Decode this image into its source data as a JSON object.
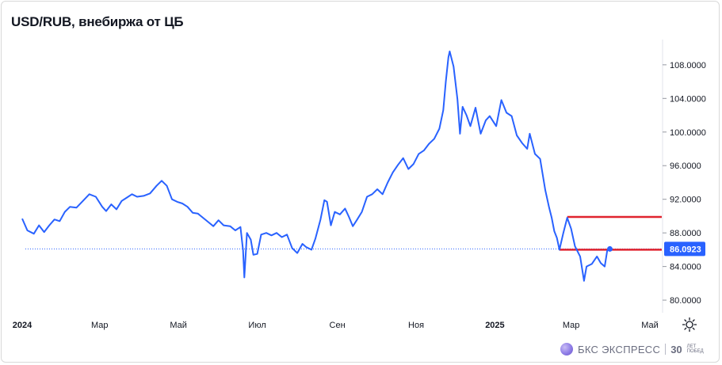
{
  "header": {
    "title": "USD/RUB, внебиржа от ЦБ"
  },
  "chart_data": {
    "type": "line",
    "title": "USD/RUB, внебиржа от ЦБ",
    "xlabel": "",
    "ylabel": "",
    "x_ticks": [
      "2024",
      "Мар",
      "Май",
      "Июл",
      "Сен",
      "Ноя",
      "2025",
      "Мар",
      "Май"
    ],
    "y_ticks": [
      "80.0000",
      "84.0000",
      "88.0000",
      "92.0000",
      "96.0000",
      "100.0000",
      "104.0000",
      "108.0000"
    ],
    "ylim": [
      78.5,
      111
    ],
    "grid": false,
    "series": [
      {
        "color": "#2962ff",
        "points": [
          [
            "2024-01-01",
            89.7
          ],
          [
            "2024-01-05",
            88.3
          ],
          [
            "2024-01-10",
            87.9
          ],
          [
            "2024-01-14",
            88.9
          ],
          [
            "2024-01-18",
            88.1
          ],
          [
            "2024-01-22",
            88.9
          ],
          [
            "2024-01-26",
            89.6
          ],
          [
            "2024-01-30",
            89.4
          ],
          [
            "2024-02-03",
            90.5
          ],
          [
            "2024-02-07",
            91.1
          ],
          [
            "2024-02-12",
            91.0
          ],
          [
            "2024-02-17",
            91.8
          ],
          [
            "2024-02-22",
            92.6
          ],
          [
            "2024-02-27",
            92.3
          ],
          [
            "2024-03-03",
            91.1
          ],
          [
            "2024-03-06",
            90.6
          ],
          [
            "2024-03-10",
            91.4
          ],
          [
            "2024-03-14",
            90.8
          ],
          [
            "2024-03-18",
            91.8
          ],
          [
            "2024-03-22",
            92.2
          ],
          [
            "2024-03-26",
            92.6
          ],
          [
            "2024-03-30",
            92.3
          ],
          [
            "2024-04-04",
            92.4
          ],
          [
            "2024-04-09",
            92.7
          ],
          [
            "2024-04-14",
            93.6
          ],
          [
            "2024-04-18",
            94.2
          ],
          [
            "2024-04-22",
            93.6
          ],
          [
            "2024-04-26",
            92.0
          ],
          [
            "2024-04-30",
            91.7
          ],
          [
            "2024-05-04",
            91.5
          ],
          [
            "2024-05-08",
            91.1
          ],
          [
            "2024-05-12",
            90.4
          ],
          [
            "2024-05-16",
            90.3
          ],
          [
            "2024-05-20",
            89.8
          ],
          [
            "2024-05-24",
            89.3
          ],
          [
            "2024-05-28",
            88.8
          ],
          [
            "2024-06-01",
            89.5
          ],
          [
            "2024-06-05",
            88.9
          ],
          [
            "2024-06-10",
            88.8
          ],
          [
            "2024-06-14",
            88.3
          ],
          [
            "2024-06-18",
            88.7
          ],
          [
            "2024-06-20",
            85.9
          ],
          [
            "2024-06-21",
            82.7
          ],
          [
            "2024-06-23",
            88.0
          ],
          [
            "2024-06-26",
            87.2
          ],
          [
            "2024-06-28",
            85.4
          ],
          [
            "2024-07-01",
            85.5
          ],
          [
            "2024-07-04",
            87.8
          ],
          [
            "2024-07-08",
            88.0
          ],
          [
            "2024-07-12",
            87.7
          ],
          [
            "2024-07-16",
            88.0
          ],
          [
            "2024-07-20",
            87.5
          ],
          [
            "2024-07-24",
            87.8
          ],
          [
            "2024-07-28",
            86.2
          ],
          [
            "2024-08-01",
            85.6
          ],
          [
            "2024-08-05",
            86.7
          ],
          [
            "2024-08-08",
            86.3
          ],
          [
            "2024-08-12",
            86.0
          ],
          [
            "2024-08-15",
            87.3
          ],
          [
            "2024-08-19",
            89.6
          ],
          [
            "2024-08-22",
            91.9
          ],
          [
            "2024-08-24",
            91.7
          ],
          [
            "2024-08-27",
            88.9
          ],
          [
            "2024-08-30",
            90.5
          ],
          [
            "2024-09-03",
            90.2
          ],
          [
            "2024-09-07",
            90.9
          ],
          [
            "2024-09-10",
            89.9
          ],
          [
            "2024-09-13",
            88.8
          ],
          [
            "2024-09-16",
            89.5
          ],
          [
            "2024-09-20",
            90.5
          ],
          [
            "2024-09-24",
            92.3
          ],
          [
            "2024-09-28",
            92.6
          ],
          [
            "2024-10-02",
            93.2
          ],
          [
            "2024-10-06",
            92.6
          ],
          [
            "2024-10-10",
            94.0
          ],
          [
            "2024-10-14",
            95.2
          ],
          [
            "2024-10-18",
            96.1
          ],
          [
            "2024-10-22",
            96.9
          ],
          [
            "2024-10-26",
            95.6
          ],
          [
            "2024-10-30",
            96.2
          ],
          [
            "2024-11-03",
            97.4
          ],
          [
            "2024-11-07",
            97.8
          ],
          [
            "2024-11-11",
            98.6
          ],
          [
            "2024-11-15",
            99.2
          ],
          [
            "2024-11-19",
            100.4
          ],
          [
            "2024-11-22",
            102.6
          ],
          [
            "2024-11-24",
            106.0
          ],
          [
            "2024-11-26",
            108.9
          ],
          [
            "2024-11-27",
            109.6
          ],
          [
            "2024-11-30",
            107.8
          ],
          [
            "2024-12-03",
            103.9
          ],
          [
            "2024-12-05",
            99.8
          ],
          [
            "2024-12-07",
            103.0
          ],
          [
            "2024-12-10",
            102.0
          ],
          [
            "2024-12-13",
            100.7
          ],
          [
            "2024-12-17",
            102.9
          ],
          [
            "2024-12-21",
            99.8
          ],
          [
            "2024-12-25",
            101.4
          ],
          [
            "2024-12-28",
            101.9
          ],
          [
            "2025-01-02",
            100.7
          ],
          [
            "2025-01-06",
            103.8
          ],
          [
            "2025-01-10",
            102.3
          ],
          [
            "2025-01-14",
            101.9
          ],
          [
            "2025-01-18",
            99.6
          ],
          [
            "2025-01-22",
            98.7
          ],
          [
            "2025-01-26",
            98.0
          ],
          [
            "2025-01-28",
            99.8
          ],
          [
            "2025-02-01",
            97.4
          ],
          [
            "2025-02-05",
            96.8
          ],
          [
            "2025-02-09",
            93.1
          ],
          [
            "2025-02-12",
            91.0
          ],
          [
            "2025-02-14",
            89.8
          ],
          [
            "2025-02-16",
            88.2
          ],
          [
            "2025-02-18",
            87.4
          ],
          [
            "2025-02-20",
            86.0
          ],
          [
            "2025-02-23",
            88.0
          ],
          [
            "2025-02-26",
            89.8
          ],
          [
            "2025-03-01",
            88.5
          ],
          [
            "2025-03-04",
            86.4
          ],
          [
            "2025-03-08",
            85.2
          ],
          [
            "2025-03-11",
            82.3
          ],
          [
            "2025-03-13",
            84.0
          ],
          [
            "2025-03-17",
            84.3
          ],
          [
            "2025-03-21",
            85.2
          ],
          [
            "2025-03-24",
            84.4
          ],
          [
            "2025-03-27",
            84.0
          ],
          [
            "2025-03-29",
            85.9
          ],
          [
            "2025-03-31",
            86.09
          ]
        ]
      }
    ],
    "last_value": "86.0923",
    "last_value_color": "#2962ff",
    "reference_lines": [
      {
        "label": "upper",
        "color": "#e0232e",
        "y": 89.9,
        "from": "2025-02-26",
        "to": "2025-05-31"
      },
      {
        "label": "lower",
        "color": "#e0232e",
        "y": 86.0,
        "from": "2025-02-20",
        "to": "2025-05-31"
      }
    ]
  },
  "footer": {
    "brand_name": "БКС ЭКСПРЕСС",
    "anniversary": "30",
    "anniversary_caption": "ЛЕТ ПОБЕД"
  },
  "settings_icon": "gear-icon"
}
